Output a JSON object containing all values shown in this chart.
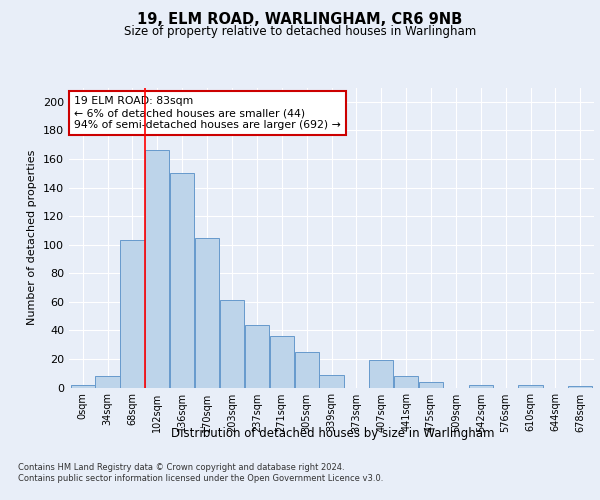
{
  "title1": "19, ELM ROAD, WARLINGHAM, CR6 9NB",
  "title2": "Size of property relative to detached houses in Warlingham",
  "xlabel": "Distribution of detached houses by size in Warlingham",
  "ylabel": "Number of detached properties",
  "bin_labels": [
    "0sqm",
    "34sqm",
    "68sqm",
    "102sqm",
    "136sqm",
    "170sqm",
    "203sqm",
    "237sqm",
    "271sqm",
    "305sqm",
    "339sqm",
    "373sqm",
    "407sqm",
    "441sqm",
    "475sqm",
    "509sqm",
    "542sqm",
    "576sqm",
    "610sqm",
    "644sqm",
    "678sqm"
  ],
  "bar_heights": [
    2,
    8,
    103,
    166,
    150,
    105,
    61,
    44,
    36,
    25,
    9,
    0,
    19,
    8,
    4,
    0,
    2,
    0,
    2,
    0,
    1
  ],
  "bar_color": "#bdd4ea",
  "bar_edge_color": "#6699cc",
  "red_line_x": 2.5,
  "annotation_text": "19 ELM ROAD: 83sqm\n← 6% of detached houses are smaller (44)\n94% of semi-detached houses are larger (692) →",
  "annotation_box_color": "#ffffff",
  "annotation_box_edge": "#cc0000",
  "footnote1": "Contains HM Land Registry data © Crown copyright and database right 2024.",
  "footnote2": "Contains public sector information licensed under the Open Government Licence v3.0.",
  "bg_color": "#e8eef8",
  "plot_bg_color": "#e8eef8",
  "grid_color": "#ffffff",
  "ylim": [
    0,
    210
  ],
  "yticks": [
    0,
    20,
    40,
    60,
    80,
    100,
    120,
    140,
    160,
    180,
    200
  ]
}
